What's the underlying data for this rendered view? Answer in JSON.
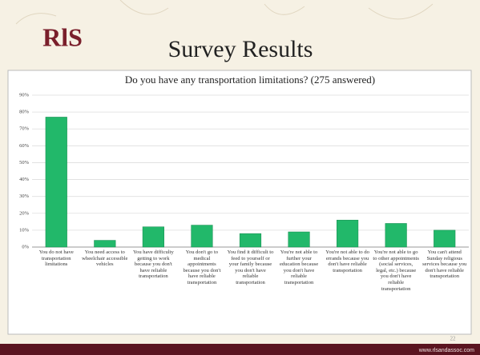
{
  "slide": {
    "logo": "RlS",
    "title": "Survey Results",
    "page_number": "22",
    "url": "www.rlsandassoc.com"
  },
  "chart_data": {
    "type": "bar",
    "title": "Do you have any transportation limitations? (275 answered)",
    "categories": [
      "You do not have transportation limitations",
      "You need access to wheelchair accessible vehicles",
      "You have difficulty getting to work because you don't have reliable transportation",
      "You don't go to medical appointments because you don't have reliable transportation",
      "You find it difficult to feed to yourself or your family because you don't have reliable transportation",
      "You're not able to further your education because you don't have reliable transportation",
      "You're not able to do errands because you don't have reliable transportation",
      "You're not able to go to other appointments (social services, legal, etc.) because you don't have reliable transportation",
      "You can't attend Sunday religious services because you don't have reliable transportation"
    ],
    "values": [
      77,
      4,
      12,
      13,
      8,
      9,
      16,
      14,
      10
    ],
    "color": "#22b86a",
    "ylim": [
      0,
      90
    ],
    "yticks": [
      {
        "value": 0,
        "label": "0%"
      },
      {
        "value": 10,
        "label": "10%"
      },
      {
        "value": 20,
        "label": "20%"
      },
      {
        "value": 30,
        "label": "30%"
      },
      {
        "value": 40,
        "label": "40%"
      },
      {
        "value": 50,
        "label": "50%"
      },
      {
        "value": 60,
        "label": "60%"
      },
      {
        "value": 70,
        "label": "70%"
      },
      {
        "value": 80,
        "label": "80%"
      },
      {
        "value": 90,
        "label": "90%"
      }
    ],
    "grid": true
  }
}
